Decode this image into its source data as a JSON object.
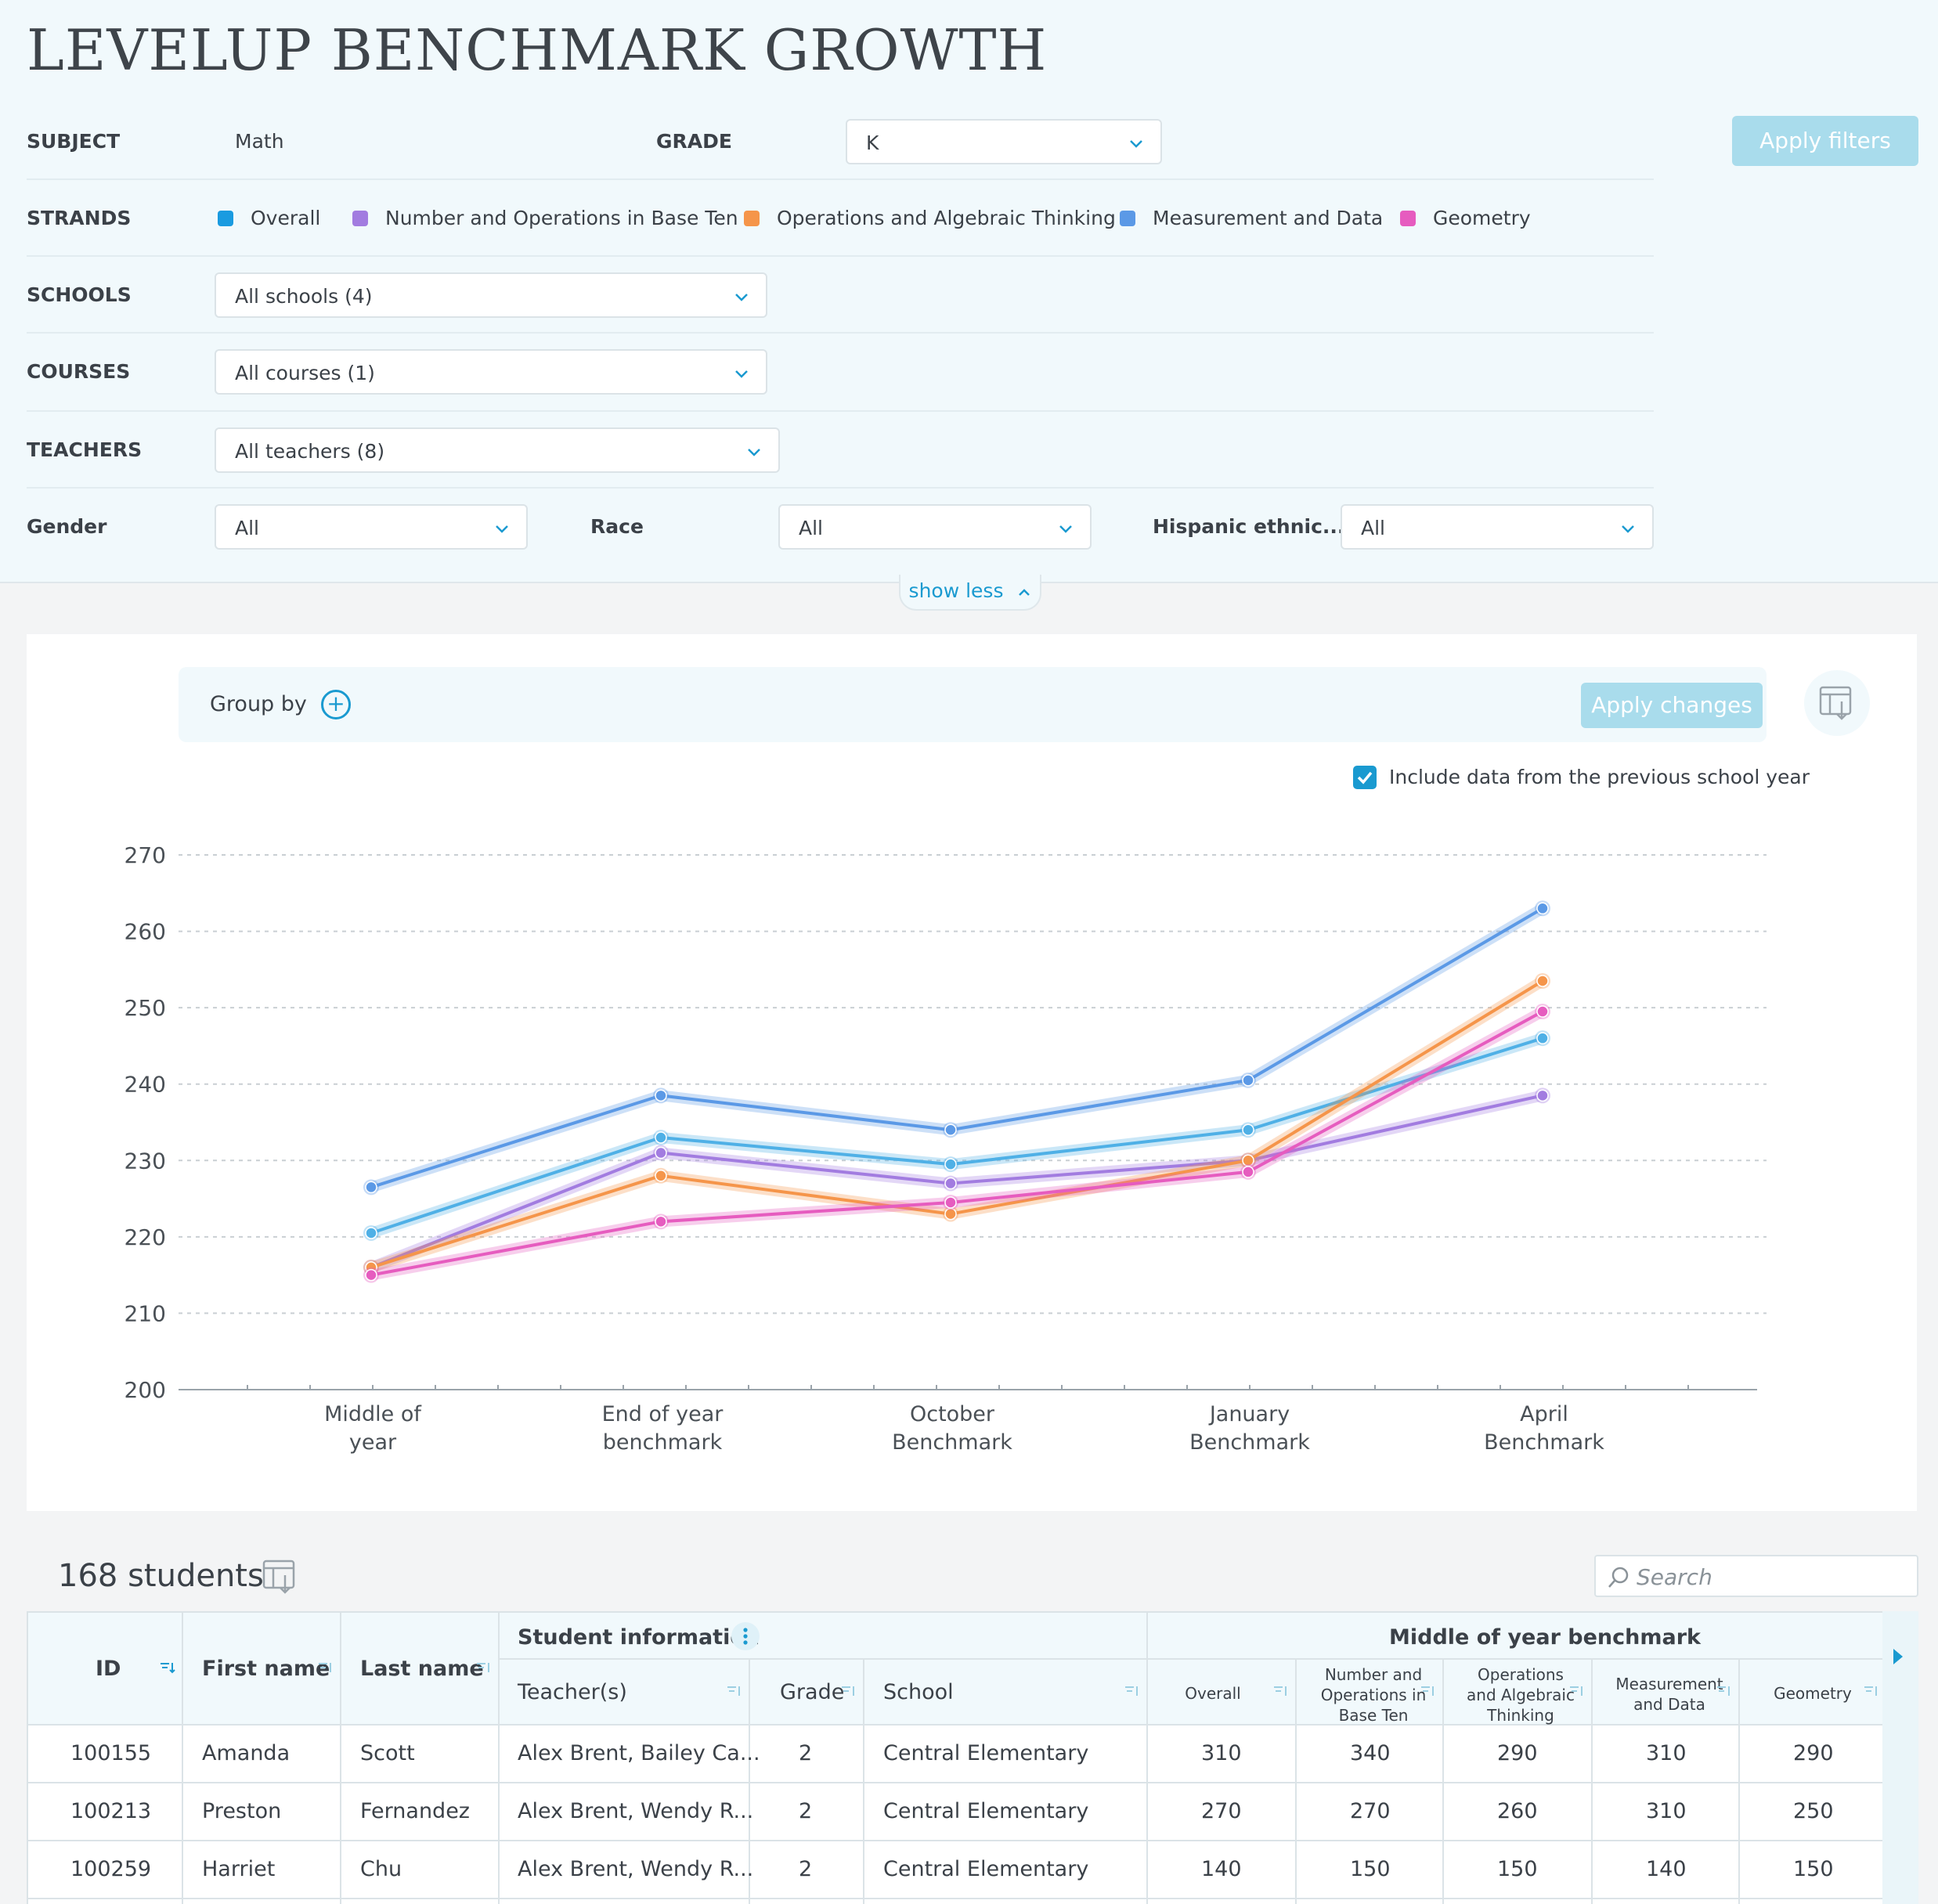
{
  "page_title": "LEVELUP BENCHMARK GROWTH",
  "filters": {
    "subject_label": "SUBJECT",
    "subject_value": "Math",
    "grade_label": "GRADE",
    "grade_value": "K",
    "apply_label": "Apply filters",
    "strands_label": "STRANDS",
    "strands": [
      {
        "name": "Overall",
        "color": "#1a9be0"
      },
      {
        "name": "Number and Operations in Base Ten",
        "color": "#a27ce0"
      },
      {
        "name": "Operations and Algebraic Thinking",
        "color": "#f5954a"
      },
      {
        "name": "Measurement and Data",
        "color": "#5b99e6"
      },
      {
        "name": "Geometry",
        "color": "#e65cbf"
      }
    ],
    "schools_label": "SCHOOLS",
    "schools_value": "All schools (4)",
    "courses_label": "COURSES",
    "courses_value": "All courses (1)",
    "teachers_label": "TEACHERS",
    "teachers_value": "All teachers (8)",
    "gender_label": "Gender",
    "gender_value": "All",
    "race_label": "Race",
    "race_value": "All",
    "hispanic_label": "Hispanic ethnic...",
    "hispanic_value": "All",
    "show_less_label": "show less"
  },
  "chart_controls": {
    "group_by_label": "Group by",
    "apply_changes_label": "Apply changes",
    "include_previous_label": "Include data from the previous school year",
    "include_previous_checked": true
  },
  "chart_data": {
    "type": "line",
    "categories": [
      "Middle of year",
      "End of year benchmark",
      "October Benchmark",
      "January Benchmark",
      "April Benchmark"
    ],
    "category_lines": [
      [
        "Middle of",
        "year"
      ],
      [
        "End of year",
        "benchmark"
      ],
      [
        "October",
        "Benchmark"
      ],
      [
        "January",
        "Benchmark"
      ],
      [
        "April",
        "Benchmark"
      ]
    ],
    "ylim": [
      200,
      270
    ],
    "yticks": [
      200,
      210,
      220,
      230,
      240,
      250,
      260,
      270
    ],
    "grid": true,
    "series": [
      {
        "name": "Overall",
        "color": "#4fb0e6",
        "values": [
          220.5,
          233,
          229.5,
          234,
          246
        ]
      },
      {
        "name": "Number and Operations in Base Ten",
        "color": "#a27ce0",
        "values": [
          216,
          231,
          227,
          230,
          238.5
        ]
      },
      {
        "name": "Operations and Algebraic Thinking",
        "color": "#f5954a",
        "values": [
          216,
          228,
          223,
          230,
          253.5
        ]
      },
      {
        "name": "Measurement and Data",
        "color": "#5b99e6",
        "values": [
          226.5,
          238.5,
          234,
          240.5,
          263
        ]
      },
      {
        "name": "Geometry",
        "color": "#e65cbf",
        "values": [
          215,
          222,
          224.5,
          228.5,
          249.5
        ]
      }
    ]
  },
  "students": {
    "count_label": "168 students",
    "search_placeholder": "Search",
    "group_student_info": "Student information",
    "group_benchmark": "Middle of year benchmark",
    "columns": {
      "id": "ID",
      "first_name": "First name",
      "last_name": "Last name",
      "teachers": "Teacher(s)",
      "grade": "Grade",
      "school": "School",
      "overall": "Overall",
      "nbt": [
        "Number and",
        "Operations in",
        "Base Ten"
      ],
      "oat": [
        "Operations",
        "and Algebraic",
        "Thinking"
      ],
      "md": [
        "Measurement",
        "and Data"
      ],
      "geometry": "Geometry"
    },
    "rows": [
      {
        "id": "100155",
        "first": "Amanda",
        "last": "Scott",
        "teachers": "Alex Brent, Bailey Ca...",
        "grade": "2",
        "school": "Central Elementary",
        "overall": "310",
        "nbt": "340",
        "oat": "290",
        "md": "310",
        "geo": "290"
      },
      {
        "id": "100213",
        "first": "Preston",
        "last": "Fernandez",
        "teachers": "Alex Brent, Wendy R...",
        "grade": "2",
        "school": "Central Elementary",
        "overall": "270",
        "nbt": "270",
        "oat": "260",
        "md": "310",
        "geo": "250"
      },
      {
        "id": "100259",
        "first": "Harriet",
        "last": "Chu",
        "teachers": "Alex Brent, Wendy R...",
        "grade": "2",
        "school": "Central Elementary",
        "overall": "140",
        "nbt": "150",
        "oat": "150",
        "md": "140",
        "geo": "150"
      }
    ]
  }
}
